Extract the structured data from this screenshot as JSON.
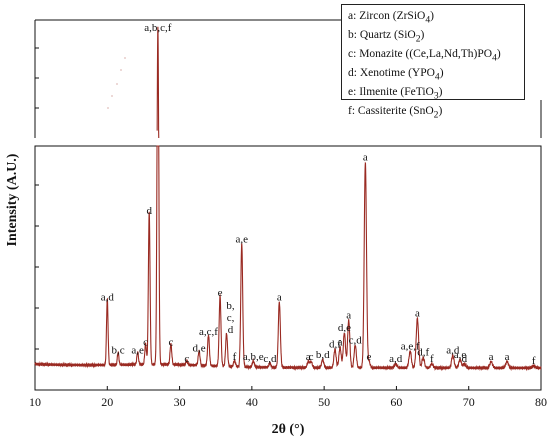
{
  "chart_data": {
    "type": "line",
    "xlabel": "2θ (°)",
    "ylabel": "Intensity (A.U.)",
    "xlim": [
      10,
      80
    ],
    "xticks": [
      "10",
      "20",
      "30",
      "40",
      "50",
      "60",
      "70",
      "80"
    ],
    "axis_break": true,
    "legend_position": "top-right",
    "line_color": "#9a2a22",
    "legend": [
      {
        "key": "a",
        "phase": "Zircon",
        "formula": "ZrSiO",
        "sub": "4"
      },
      {
        "key": "b",
        "phase": "Quartz",
        "formula": "SiO",
        "sub": "2"
      },
      {
        "key": "c",
        "phase": "Monazite",
        "formula": "(Ce,La,Nd,Th)PO",
        "sub": "4"
      },
      {
        "key": "d",
        "phase": "Xenotime",
        "formula": "YPO",
        "sub": "4"
      },
      {
        "key": "e",
        "phase": "Ilmenite",
        "formula": "FeTiO",
        "sub": "3"
      },
      {
        "key": "f",
        "phase": "Cassiterite",
        "formula": "SnO",
        "sub": "2"
      }
    ],
    "peaks": [
      {
        "x": 20.0,
        "y": 0.32,
        "label": "a,d"
      },
      {
        "x": 21.5,
        "y": 0.06,
        "label": "b,c"
      },
      {
        "x": 24.2,
        "y": 0.06,
        "label": "a,e"
      },
      {
        "x": 25.3,
        "y": 0.1,
        "label": "c"
      },
      {
        "x": 25.8,
        "y": 0.74,
        "label": "d"
      },
      {
        "x": 27.0,
        "y": 1.9,
        "label": "a,b,c,f"
      },
      {
        "x": 28.8,
        "y": 0.1,
        "label": "c"
      },
      {
        "x": 31.0,
        "y": 0.02,
        "label": "c"
      },
      {
        "x": 32.7,
        "y": 0.07,
        "label": "d,e"
      },
      {
        "x": 34.0,
        "y": 0.15,
        "label": "a,c,f"
      },
      {
        "x": 35.6,
        "y": 0.34,
        "label": "e"
      },
      {
        "x": 36.5,
        "y": 0.16,
        "label": "b,c,d"
      },
      {
        "x": 37.6,
        "y": 0.03,
        "label": "f"
      },
      {
        "x": 38.6,
        "y": 0.6,
        "label": "a,e"
      },
      {
        "x": 40.2,
        "y": 0.03,
        "label": "a,b,e"
      },
      {
        "x": 42.5,
        "y": 0.02,
        "label": "c,d"
      },
      {
        "x": 43.8,
        "y": 0.32,
        "label": "a"
      },
      {
        "x": 47.8,
        "y": 0.03,
        "label": "a"
      },
      {
        "x": 48.2,
        "y": 0.03,
        "label": "c"
      },
      {
        "x": 49.8,
        "y": 0.04,
        "label": "b,d"
      },
      {
        "x": 51.5,
        "y": 0.09,
        "label": "d,f"
      },
      {
        "x": 52.2,
        "y": 0.1,
        "label": "a"
      },
      {
        "x": 52.8,
        "y": 0.17,
        "label": "d,e"
      },
      {
        "x": 53.4,
        "y": 0.23,
        "label": "a"
      },
      {
        "x": 54.3,
        "y": 0.11,
        "label": "c,d"
      },
      {
        "x": 55.7,
        "y": 1.0,
        "label": "a"
      },
      {
        "x": 56.2,
        "y": 0.03,
        "label": "e"
      },
      {
        "x": 59.9,
        "y": 0.02,
        "label": "a,d"
      },
      {
        "x": 61.9,
        "y": 0.08,
        "label": "a,e,f"
      },
      {
        "x": 62.9,
        "y": 0.24,
        "label": "a"
      },
      {
        "x": 63.7,
        "y": 0.05,
        "label": "d,f"
      },
      {
        "x": 64.9,
        "y": 0.02,
        "label": "f"
      },
      {
        "x": 67.8,
        "y": 0.06,
        "label": "a,d"
      },
      {
        "x": 68.8,
        "y": 0.04,
        "label": "a,e"
      },
      {
        "x": 69.4,
        "y": 0.02,
        "label": "d"
      },
      {
        "x": 73.1,
        "y": 0.03,
        "label": "a"
      },
      {
        "x": 75.3,
        "y": 0.03,
        "label": "a"
      },
      {
        "x": 79.0,
        "y": 0.01,
        "label": "f"
      }
    ]
  }
}
